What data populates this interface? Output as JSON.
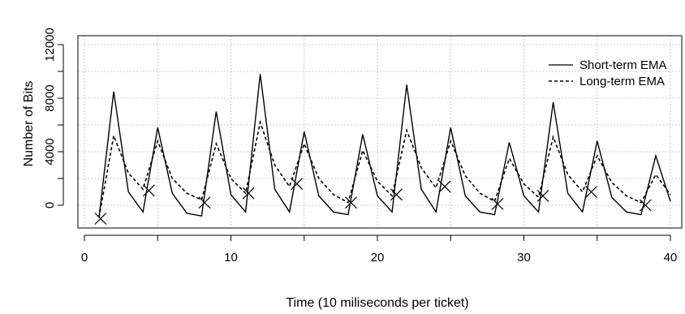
{
  "chart_data": {
    "type": "line",
    "title": "",
    "xlabel": "Time (10 miliseconds per ticket)",
    "ylabel": "Number of Bits",
    "xlim": [
      0,
      40
    ],
    "ylim": [
      -1000,
      12000
    ],
    "xticks": [
      0,
      10,
      20,
      30,
      40
    ],
    "yticks": [
      0,
      4000,
      8000,
      12000
    ],
    "grid": true,
    "legend_position": "top-right",
    "series": [
      {
        "name": "Short-term EMA",
        "style": "solid",
        "x": [
          1,
          2,
          3,
          4,
          5,
          6,
          7,
          8,
          9,
          10,
          11,
          12,
          13,
          14,
          15,
          16,
          17,
          18,
          19,
          20,
          21,
          22,
          23,
          24,
          25,
          26,
          27,
          28,
          29,
          30,
          31,
          32,
          33,
          34,
          35,
          36,
          37,
          38,
          39,
          40
        ],
        "values": [
          -900,
          8500,
          1000,
          -500,
          5800,
          900,
          -600,
          -800,
          7000,
          800,
          -500,
          9800,
          1200,
          -500,
          5500,
          700,
          -500,
          -700,
          5300,
          700,
          -500,
          9000,
          1200,
          -500,
          5800,
          700,
          -500,
          -700,
          4700,
          700,
          -500,
          7700,
          900,
          -500,
          4800,
          600,
          -500,
          -700,
          3700,
          300
        ]
      },
      {
        "name": "Long-term EMA",
        "style": "dashed",
        "x": [
          1,
          2,
          3,
          4,
          5,
          6,
          7,
          8,
          9,
          10,
          11,
          12,
          13,
          14,
          15,
          16,
          17,
          18,
          19,
          20,
          21,
          22,
          23,
          24,
          25,
          26,
          27,
          28,
          29,
          30,
          31,
          32,
          33,
          34,
          35,
          36,
          37,
          38,
          39,
          40
        ],
        "values": [
          -900,
          5200,
          2400,
          1200,
          4800,
          2000,
          900,
          400,
          4600,
          2000,
          900,
          6200,
          3000,
          1400,
          4600,
          2000,
          800,
          200,
          4100,
          1800,
          700,
          5600,
          2800,
          1300,
          4800,
          2200,
          900,
          300,
          3500,
          1600,
          600,
          5100,
          2300,
          1000,
          3700,
          1700,
          700,
          200,
          2300,
          800
        ]
      }
    ],
    "markers": {
      "symbol": "x",
      "x": [
        1.1,
        4.4,
        8.2,
        11.2,
        14.5,
        18.2,
        21.3,
        24.6,
        28.2,
        31.3,
        34.6,
        38.3
      ],
      "values": [
        -1000,
        1100,
        200,
        900,
        1600,
        200,
        800,
        1400,
        100,
        700,
        1000,
        0
      ]
    }
  }
}
